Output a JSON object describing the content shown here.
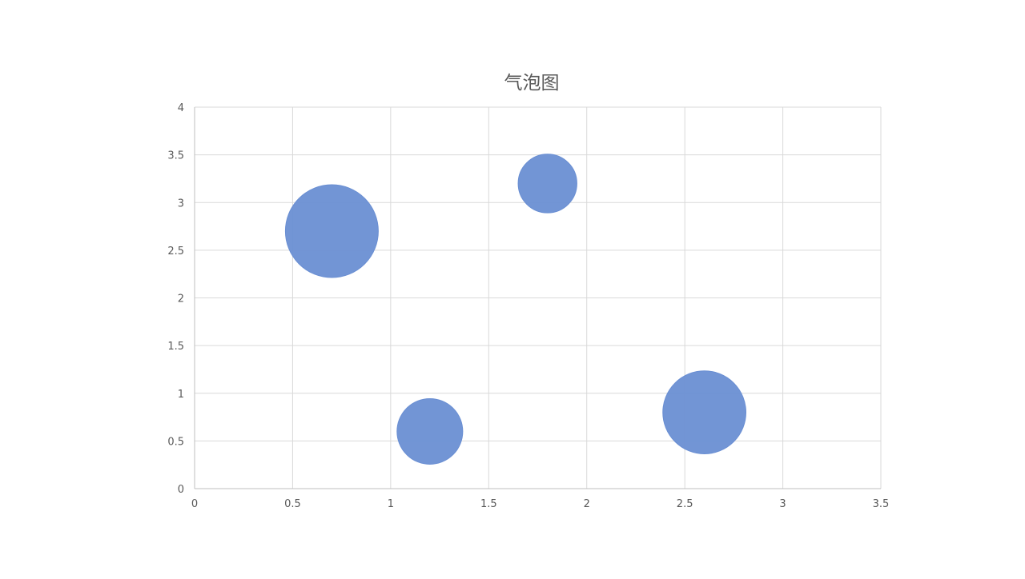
{
  "chart_data": {
    "type": "scatter",
    "subtype": "bubble",
    "title": "气泡图",
    "xlabel": "",
    "ylabel": "",
    "xlim": [
      0,
      3.5
    ],
    "ylim": [
      0,
      4
    ],
    "x_ticks": [
      0,
      0.5,
      1,
      1.5,
      2,
      2.5,
      3,
      3.5
    ],
    "y_ticks": [
      0,
      0.5,
      1,
      1.5,
      2,
      2.5,
      3,
      3.5,
      4
    ],
    "x_tick_labels": [
      "0",
      "0.5",
      "1",
      "1.5",
      "2",
      "2.5",
      "3",
      "3.5"
    ],
    "y_tick_labels": [
      "0",
      "0.5",
      "1",
      "1.5",
      "2",
      "2.5",
      "3",
      "3.5",
      "4"
    ],
    "grid": true,
    "legend": "none",
    "series": [
      {
        "color": "#6A8FD3",
        "points": [
          {
            "x": 0.7,
            "y": 2.7,
            "size": 9
          },
          {
            "x": 1.2,
            "y": 0.6,
            "size": 4.5
          },
          {
            "x": 1.8,
            "y": 3.2,
            "size": 3.6
          },
          {
            "x": 2.6,
            "y": 0.8,
            "size": 7.2
          }
        ]
      }
    ]
  },
  "colors": {
    "grid": "#D9D9D9",
    "axis": "#BFBFBF",
    "tick_text": "#595959",
    "title_text": "#595959"
  }
}
